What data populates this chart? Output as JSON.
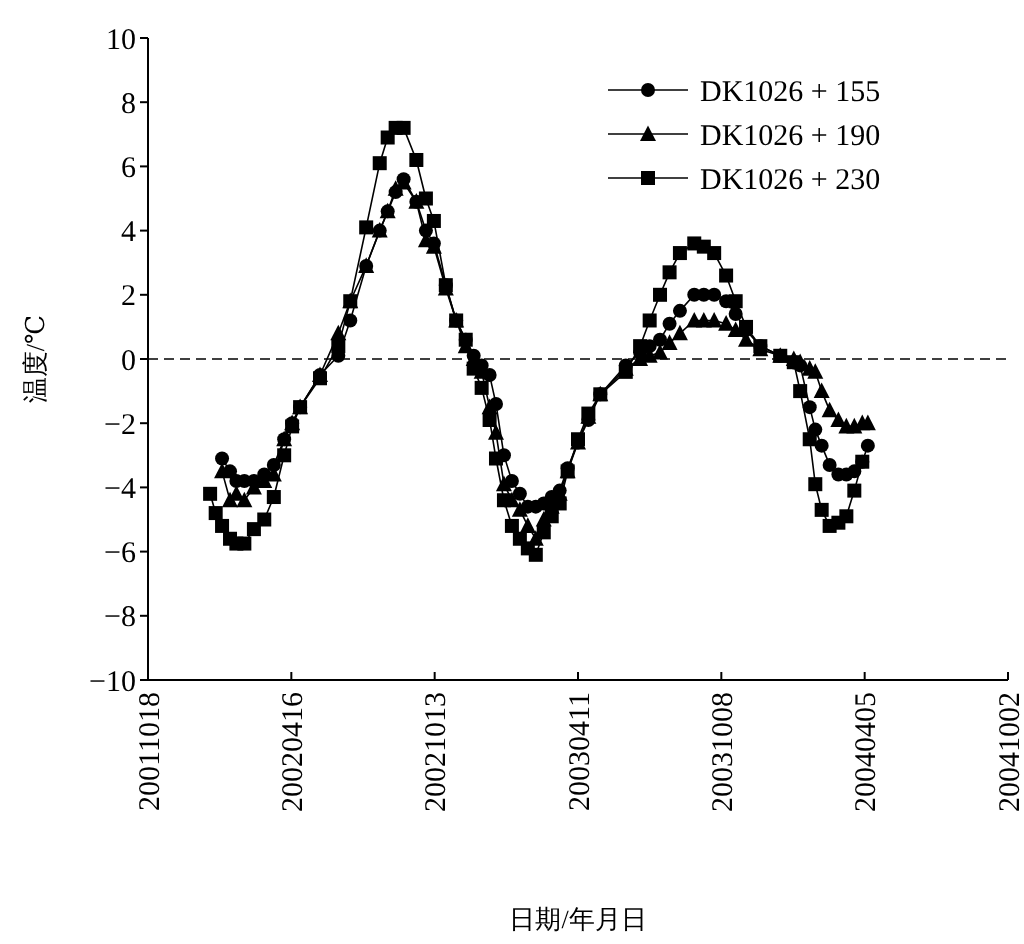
{
  "chart_data": {
    "type": "line",
    "xlabel": "日期/年月日",
    "ylabel": "温度/℃",
    "x": [
      "2002-01-04",
      "2002-01-11",
      "2002-01-19",
      "2002-01-29",
      "2002-02-06",
      "2002-02-16",
      "2002-02-28",
      "2002-03-13",
      "2002-03-25",
      "2002-04-07",
      "2002-04-17",
      "2002-04-27",
      "2002-05-22",
      "2002-06-14",
      "2002-06-29",
      "2002-07-19",
      "2002-08-05",
      "2002-08-15",
      "2002-08-25",
      "2002-09-04",
      "2002-09-20",
      "2002-10-02",
      "2002-10-12",
      "2002-10-27",
      "2002-11-09",
      "2002-11-21",
      "2002-12-01",
      "2002-12-11",
      "2002-12-21",
      "2002-12-29",
      "2003-01-08",
      "2003-01-18",
      "2003-01-28",
      "2003-02-07",
      "2003-02-17",
      "2003-02-27",
      "2003-03-09",
      "2003-03-19",
      "2003-03-29",
      "2003-04-11",
      "2003-04-24",
      "2003-05-09",
      "2003-06-10",
      "2003-06-28",
      "2003-07-10",
      "2003-07-23",
      "2003-08-04",
      "2003-08-17",
      "2003-09-04",
      "2003-09-16",
      "2003-09-29",
      "2003-10-14",
      "2003-10-26",
      "2003-11-08",
      "2003-11-26",
      "2003-12-21",
      "2004-01-07",
      "2004-01-15",
      "2004-01-27",
      "2004-02-03",
      "2004-02-11",
      "2004-02-21",
      "2004-03-03",
      "2004-03-13",
      "2004-03-23",
      "2004-04-02",
      "2004-04-09"
    ],
    "series": [
      {
        "name": "DK1026 + 155",
        "color": "#000000",
        "marker": "circle",
        "values": [
          null,
          null,
          -3.1,
          -3.5,
          -3.8,
          -3.8,
          -3.8,
          -3.6,
          -3.3,
          -2.5,
          -2.0,
          -1.5,
          -0.5,
          0.1,
          1.2,
          2.9,
          4.0,
          4.6,
          5.2,
          5.6,
          4.9,
          4.0,
          3.6,
          2.3,
          1.2,
          0.6,
          0.1,
          -0.2,
          -0.5,
          -1.4,
          -3.0,
          -3.8,
          -4.2,
          -4.6,
          -4.6,
          -4.5,
          -4.3,
          -4.1,
          -3.4,
          -2.6,
          -1.9,
          -1.1,
          -0.2,
          0.2,
          0.4,
          0.6,
          1.1,
          1.5,
          2.0,
          2.0,
          2.0,
          1.8,
          1.4,
          0.9,
          0.4,
          0.1,
          -0.1,
          -0.2,
          -1.5,
          -2.2,
          -2.7,
          -3.3,
          -3.6,
          -3.6,
          -3.5,
          -3.2,
          -2.7
        ]
      },
      {
        "name": "DK1026 + 190",
        "color": "#000000",
        "marker": "triangle",
        "values": [
          null,
          null,
          -3.5,
          -4.4,
          -4.2,
          -4.4,
          -4.0,
          -3.8,
          -3.6,
          -2.5,
          -2.0,
          -1.5,
          -0.5,
          0.8,
          1.8,
          2.9,
          4.0,
          4.6,
          5.3,
          5.5,
          4.9,
          3.7,
          3.5,
          2.2,
          1.2,
          0.4,
          0.0,
          -0.4,
          -1.5,
          -2.3,
          -3.9,
          -4.4,
          -4.7,
          -5.2,
          -5.6,
          -5.0,
          -4.6,
          -4.2,
          -3.5,
          -2.6,
          -1.8,
          -1.1,
          -0.3,
          0.0,
          0.1,
          0.2,
          0.5,
          0.8,
          1.2,
          1.2,
          1.2,
          1.1,
          0.9,
          0.6,
          0.3,
          0.1,
          0.0,
          -0.1,
          -0.3,
          -0.4,
          -1.0,
          -1.6,
          -1.9,
          -2.1,
          -2.1,
          -2.0,
          -2.0
        ]
      },
      {
        "name": "DK1026 + 230",
        "color": "#000000",
        "marker": "square",
        "values": [
          -4.2,
          -4.8,
          -5.2,
          -5.6,
          -5.75,
          -5.75,
          -5.3,
          -5.0,
          -4.3,
          -3.0,
          -2.1,
          -1.5,
          -0.6,
          0.4,
          1.8,
          4.1,
          6.1,
          6.9,
          7.2,
          7.2,
          6.2,
          5.0,
          4.3,
          2.3,
          1.2,
          0.6,
          -0.3,
          -0.9,
          -1.9,
          -3.1,
          -4.4,
          -5.2,
          -5.6,
          -5.9,
          -6.1,
          -5.4,
          -4.9,
          -4.5,
          -3.5,
          -2.5,
          -1.7,
          -1.1,
          -0.4,
          0.4,
          1.2,
          2.0,
          2.7,
          3.3,
          3.6,
          3.5,
          3.3,
          2.6,
          1.8,
          1.0,
          0.4,
          0.1,
          -0.1,
          -1.0,
          -2.5,
          -3.9,
          -4.7,
          -5.2,
          -5.1,
          -4.9,
          -4.1,
          -3.2,
          null
        ]
      }
    ],
    "xlim": [
      "2001-10-18",
      "2004-10-02"
    ],
    "xticks": [
      {
        "value": "2001-10-18",
        "label": "20011018"
      },
      {
        "value": "2002-04-16",
        "label": "20020416"
      },
      {
        "value": "2002-10-13",
        "label": "20021013"
      },
      {
        "value": "2003-04-11",
        "label": "20030411"
      },
      {
        "value": "2003-10-08",
        "label": "20031008"
      },
      {
        "value": "2004-04-05",
        "label": "20040405"
      },
      {
        "value": "2004-10-02",
        "label": "20041002"
      }
    ],
    "ylim": [
      -10,
      10
    ],
    "yticks": [
      {
        "value": -10,
        "label": "−10"
      },
      {
        "value": -8,
        "label": "−8"
      },
      {
        "value": -6,
        "label": "−6"
      },
      {
        "value": -4,
        "label": "−4"
      },
      {
        "value": -2,
        "label": "−2"
      },
      0,
      2,
      4,
      6,
      8,
      10
    ],
    "ref_lines": [
      {
        "axis": "y",
        "value": 0,
        "color": "#000000",
        "line_style": "dashed"
      }
    ],
    "legend": "top right",
    "grid": false,
    "line_style": "solid"
  }
}
